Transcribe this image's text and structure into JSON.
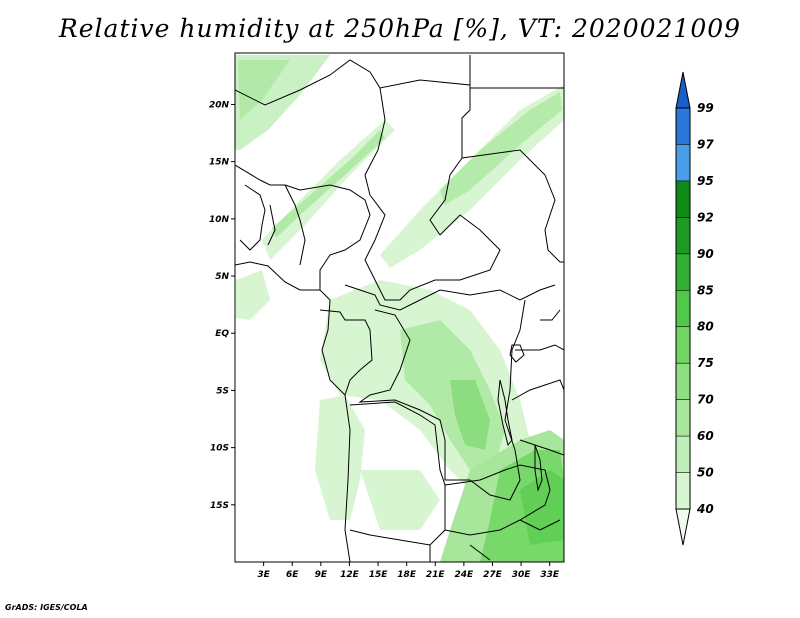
{
  "title": "Relative humidity at 250hPa [%], VT: 2020021009",
  "credit": "GrADS: IGES/COLA",
  "map": {
    "lon_range": [
      0,
      34.5
    ],
    "lat_range": [
      -20,
      24.5
    ],
    "lon_ticks": [
      "3E",
      "6E",
      "9E",
      "12E",
      "15E",
      "18E",
      "21E",
      "24E",
      "27E",
      "30E",
      "33E"
    ],
    "lat_ticks": [
      "20N",
      "15N",
      "10N",
      "5N",
      "EQ",
      "5S",
      "10S",
      "15S"
    ]
  },
  "colorbar": {
    "labels": [
      "40",
      "50",
      "60",
      "70",
      "75",
      "80",
      "85",
      "90",
      "92",
      "95",
      "97",
      "99"
    ],
    "colors": [
      "#f0fcf0",
      "#d8f5d2",
      "#c0eeb8",
      "#a8e69c",
      "#8edf82",
      "#72d665",
      "#52c84a",
      "#32b032",
      "#1d9a22",
      "#0f8a14",
      "#4a9ee8",
      "#2a78d8",
      "#1a5cc8"
    ]
  },
  "humidity_field": {
    "note_colors": {
      "light": "#d8f5d2",
      "mid": "#a8e69c",
      "strong": "#72d665"
    }
  }
}
